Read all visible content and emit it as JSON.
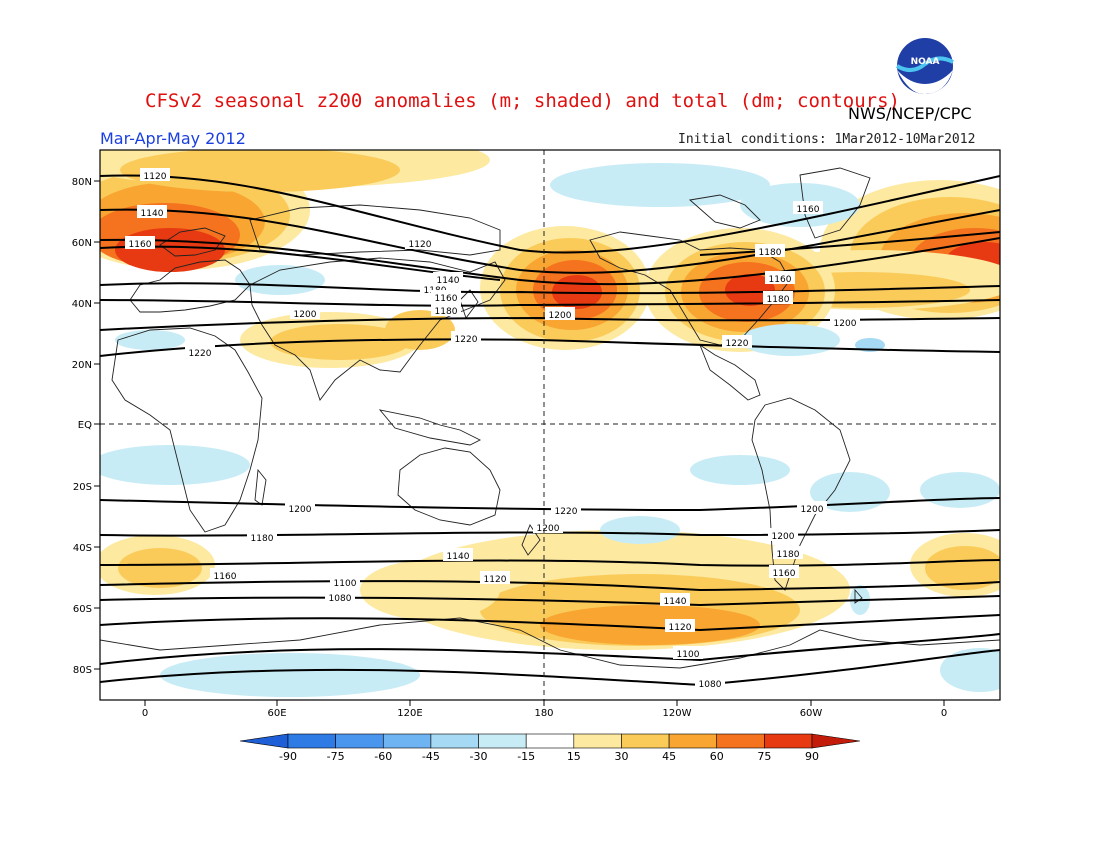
{
  "title": "CFSv2 seasonal z200 anomalies (m; shaded) and total (dm; contours)",
  "agency": "NWS/NCEP/CPC",
  "logo_text": "NOAA",
  "season": "Mar-Apr-May 2012",
  "initial_conditions": "Initial conditions: 1Mar2012-10Mar2012",
  "colors": {
    "neg90": "#1e5fd8",
    "neg75": "#2f7be6",
    "neg60": "#4a95ee",
    "neg45": "#6eb3f2",
    "neg30": "#a6d9f3",
    "neg15": "#c8ecf6",
    "zero": "#ffffff",
    "pos15": "#fde9a0",
    "pos30": "#fbcb5a",
    "pos45": "#f9a531",
    "pos60": "#f5731f",
    "pos75": "#e83a12",
    "pos90": "#c41c0a"
  },
  "map": {
    "lat_labels": [
      "80N",
      "60N",
      "40N",
      "20N",
      "EQ",
      "20S",
      "40S",
      "60S",
      "80S"
    ],
    "lon_labels": [
      "0",
      "60E",
      "120E",
      "180",
      "120W",
      "60W",
      "0"
    ]
  },
  "colorbar": {
    "labels": [
      "-90",
      "-75",
      "-60",
      "-45",
      "-30",
      "-15",
      "15",
      "30",
      "45",
      "60",
      "75",
      "90"
    ]
  },
  "contour_labels": [
    "1120",
    "1140",
    "1160",
    "1180",
    "1200",
    "1220",
    "1120",
    "1140",
    "1160",
    "1180",
    "1200",
    "1220",
    "1160",
    "1180",
    "1200",
    "1220",
    "1200",
    "1180",
    "1160",
    "1140",
    "1120",
    "1100",
    "1080",
    "1220",
    "1200",
    "1180",
    "1160",
    "1140",
    "1120",
    "1100",
    "1080",
    "1200",
    "1160",
    "1180",
    "1200"
  ]
}
